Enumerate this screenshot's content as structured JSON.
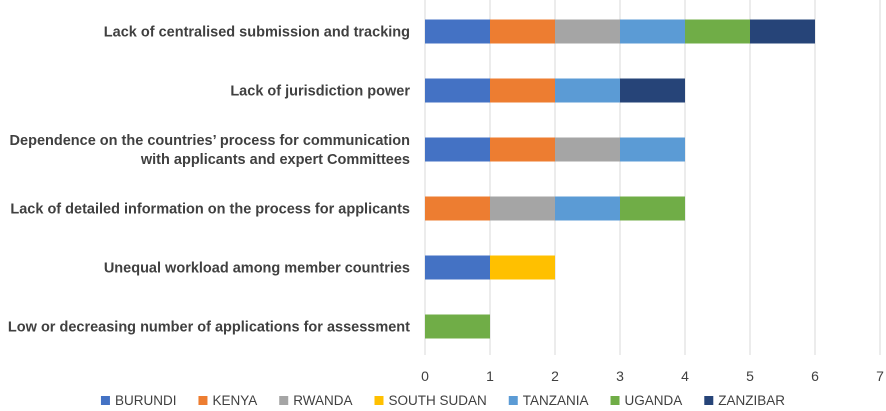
{
  "chart_data": {
    "type": "bar",
    "orientation": "horizontal",
    "stacked": true,
    "categories": [
      [
        "Lack of centralised submission and tracking"
      ],
      [
        "Lack of jurisdiction power"
      ],
      [
        "Dependence on the countries’ process for communication",
        "with applicants and expert Committees"
      ],
      [
        "Lack of detailed information on the process for applicants"
      ],
      [
        "Unequal workload among member countries"
      ],
      [
        "Low or decreasing number of applications for assessment"
      ]
    ],
    "series": [
      {
        "name": "BURUNDI",
        "color": "#4472c4",
        "values": [
          1,
          1,
          1,
          0,
          1,
          0
        ]
      },
      {
        "name": "KENYA",
        "color": "#ed7d31",
        "values": [
          1,
          1,
          1,
          1,
          0,
          0
        ]
      },
      {
        "name": "RWANDA",
        "color": "#a5a5a5",
        "values": [
          1,
          0,
          1,
          1,
          0,
          0
        ]
      },
      {
        "name": "SOUTH SUDAN",
        "color": "#ffc000",
        "values": [
          0,
          0,
          0,
          0,
          1,
          0
        ]
      },
      {
        "name": "TANZANIA",
        "color": "#5b9bd5",
        "values": [
          1,
          1,
          1,
          1,
          0,
          0
        ]
      },
      {
        "name": "UGANDA",
        "color": "#70ad47",
        "values": [
          1,
          0,
          0,
          1,
          0,
          1
        ]
      },
      {
        "name": "ZANZIBAR",
        "color": "#264478",
        "values": [
          1,
          1,
          0,
          0,
          0,
          0
        ]
      }
    ],
    "xlim": [
      0,
      7
    ],
    "xticks": [
      "0",
      "1",
      "2",
      "3",
      "4",
      "5",
      "6",
      "7"
    ],
    "grid": true,
    "legend_position": "bottom",
    "title": "",
    "xlabel": "",
    "ylabel": ""
  }
}
